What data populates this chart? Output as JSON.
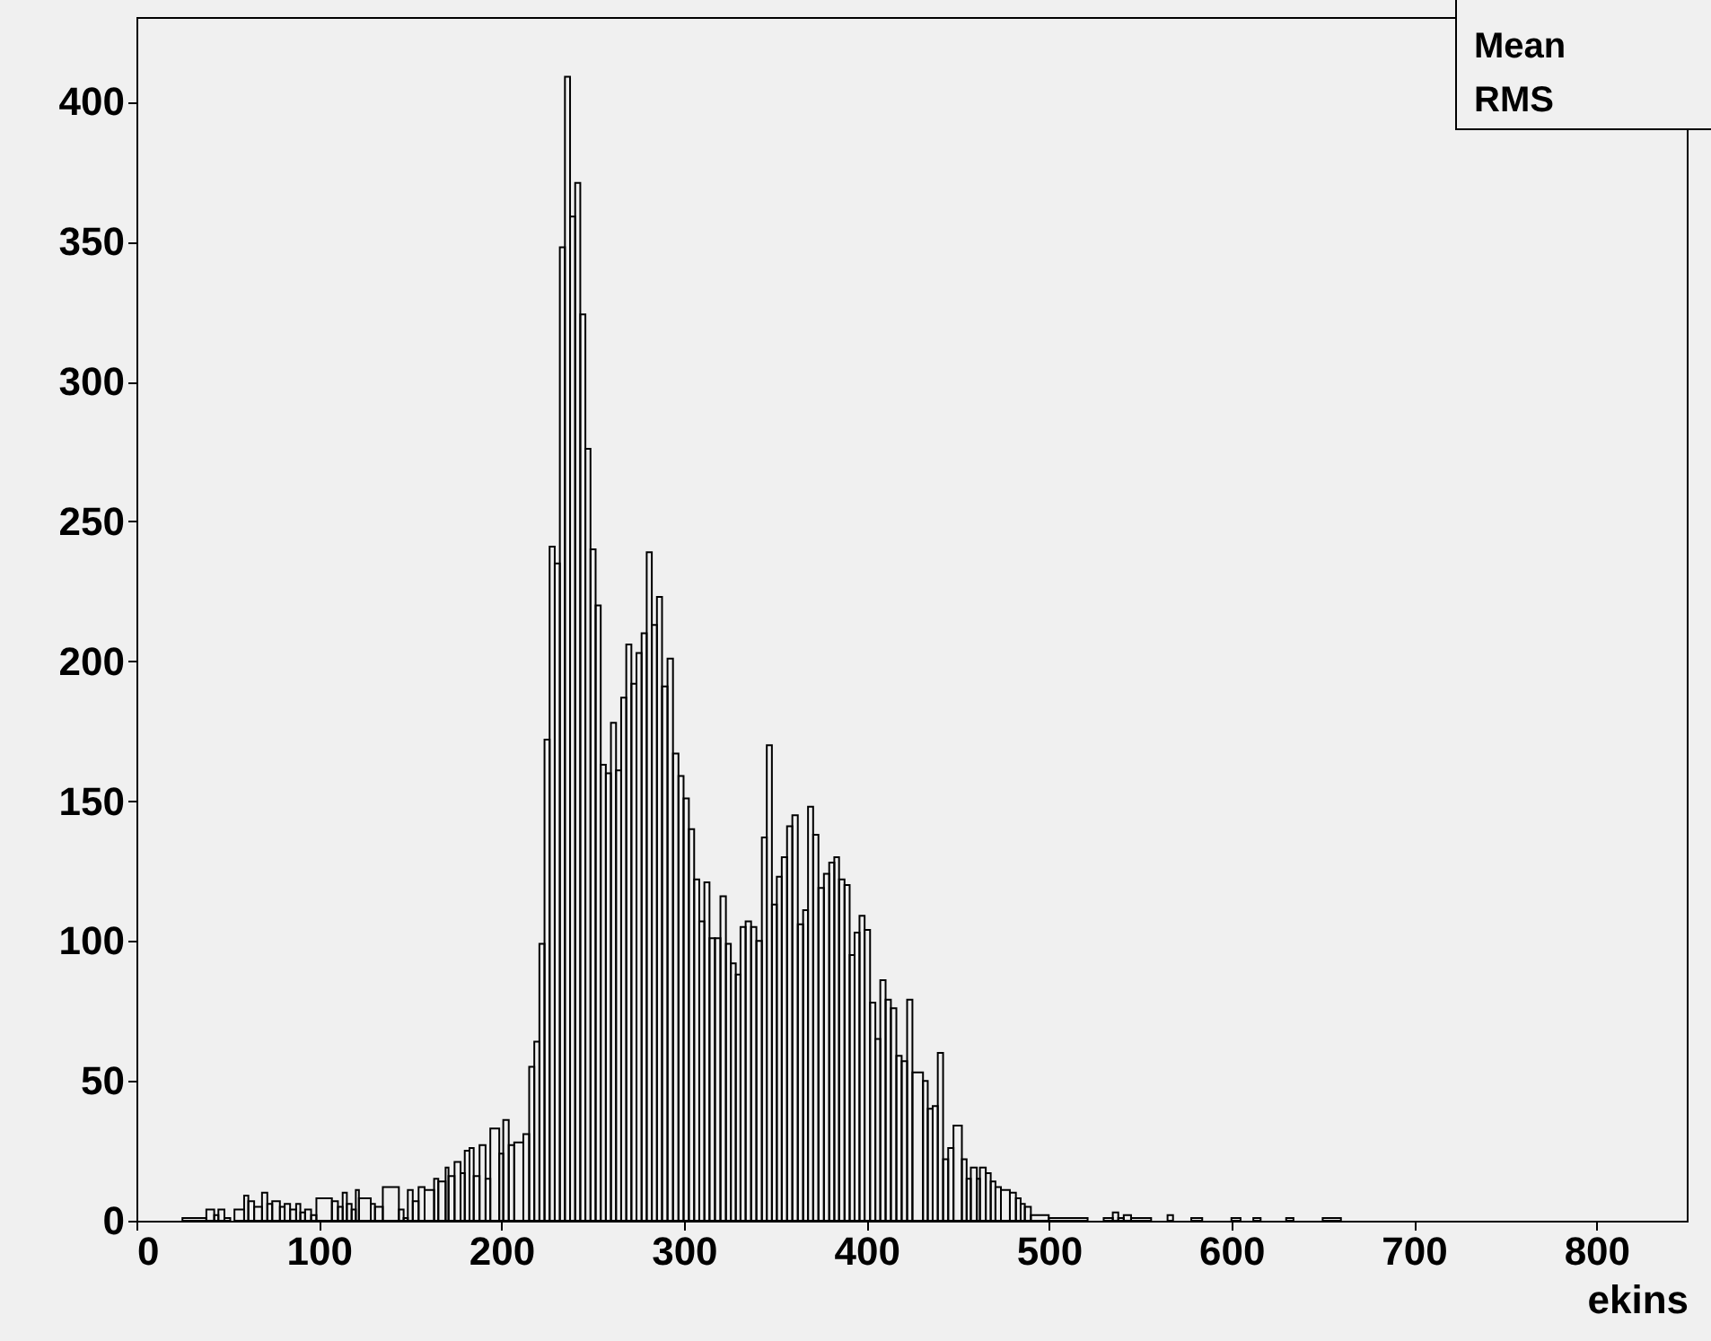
{
  "chart_data": {
    "type": "histogram",
    "xlabel": "ekins",
    "bins": [
      25.2,
      38.3,
      42.6,
      44.9,
      48.2,
      51.4,
      53.7,
      59.0,
      61.3,
      64.5,
      68.8,
      71.7,
      74.4,
      78.6,
      81.2,
      84.2,
      87.5,
      89.8,
      92.4,
      95.7,
      98.6,
      107.1,
      110.4,
      113.0,
      115.3,
      117.9,
      120.2,
      121.9,
      128.4,
      130.7,
      135.0,
      143.8,
      146.4,
      148.7,
      151.4,
      154.6,
      157.9,
      163.1,
      165.4,
      169.4,
      171.0,
      174.3,
      177.6,
      179.9,
      182.5,
      184.8,
      188.0,
      191.3,
      193.9,
      198.8,
      201,
      204,
      207,
      212,
      215.2,
      218,
      220.8,
      223.6,
      226.4,
      229.2,
      232,
      234.8,
      237.6,
      240.4,
      243.2,
      246,
      248.8,
      251.6,
      254.4,
      257.2,
      260,
      262.8,
      265.6,
      268.4,
      271.2,
      274,
      276.8,
      279.6,
      282.4,
      285.2,
      288,
      291,
      294,
      297,
      299.8,
      302.7,
      305.6,
      308.4,
      311.2,
      314,
      317,
      320,
      323,
      325.7,
      328.4,
      331,
      333.8,
      336.8,
      339.7,
      342.7,
      345.4,
      348.2,
      350.9,
      353.6,
      356.5,
      359.4,
      362.4,
      365.3,
      368,
      370.8,
      373.7,
      376.7,
      379.6,
      382.4,
      385,
      388,
      390.8,
      393.5,
      396.2,
      399,
      402,
      404.9,
      407.6,
      410.5,
      413.4,
      416.4,
      419.3,
      422.3,
      425.2,
      431,
      433.6,
      436.3,
      439.1,
      442,
      444.8,
      447.7,
      452.3,
      454.9,
      457.2,
      460.5,
      462.2,
      465.4,
      468.1,
      470.7,
      473.7,
      478.6,
      481.9,
      484.5,
      486.8,
      490.1,
      499.9,
      521.2,
      530,
      535,
      538,
      541,
      545,
      556,
      565,
      568,
      578,
      584,
      600,
      605,
      612,
      616,
      630,
      634,
      650,
      660
    ],
    "values": [
      1,
      4,
      2,
      4,
      1,
      0,
      4,
      9,
      7,
      5,
      10,
      6,
      7,
      5,
      6,
      4,
      6,
      3,
      4,
      2,
      8,
      7,
      5,
      10,
      6,
      4,
      11,
      8,
      6,
      5,
      12,
      4,
      1,
      11,
      7,
      12,
      11,
      15,
      14,
      19,
      16,
      21,
      17,
      25,
      26,
      16,
      27,
      15,
      33,
      24,
      36,
      27,
      28,
      31,
      55,
      64,
      99,
      172,
      241,
      235,
      348,
      409,
      359,
      371,
      324,
      276,
      240,
      220,
      163,
      160,
      178,
      161,
      187,
      206,
      192,
      203,
      210,
      239,
      213,
      223,
      191,
      201,
      167,
      159,
      151,
      140,
      122,
      107,
      121,
      101,
      101,
      116,
      99,
      92,
      88,
      105,
      107,
      105,
      100,
      137,
      170,
      113,
      123,
      130,
      141,
      145,
      106,
      111,
      148,
      138,
      119,
      124,
      128,
      130,
      122,
      120,
      95,
      103,
      109,
      104,
      78,
      65,
      86,
      79,
      76,
      59,
      57,
      79,
      53,
      50,
      40,
      41,
      60,
      22,
      26,
      34,
      22,
      15,
      19,
      15,
      19,
      17,
      14,
      12,
      11,
      10,
      8,
      6,
      5,
      2,
      1,
      0,
      1,
      3,
      1,
      2,
      1,
      0,
      2,
      0,
      1,
      0,
      1,
      0,
      1,
      0,
      1,
      0,
      1
    ],
    "xlim": [
      0,
      850
    ],
    "ylim": [
      0,
      430
    ],
    "xticks": [
      0,
      100,
      200,
      300,
      400,
      500,
      600,
      700,
      800
    ],
    "yticks": [
      0,
      50,
      100,
      150,
      200,
      250,
      300,
      350,
      400
    ],
    "annotations": [
      "Mean",
      "RMS"
    ],
    "grid": false
  }
}
